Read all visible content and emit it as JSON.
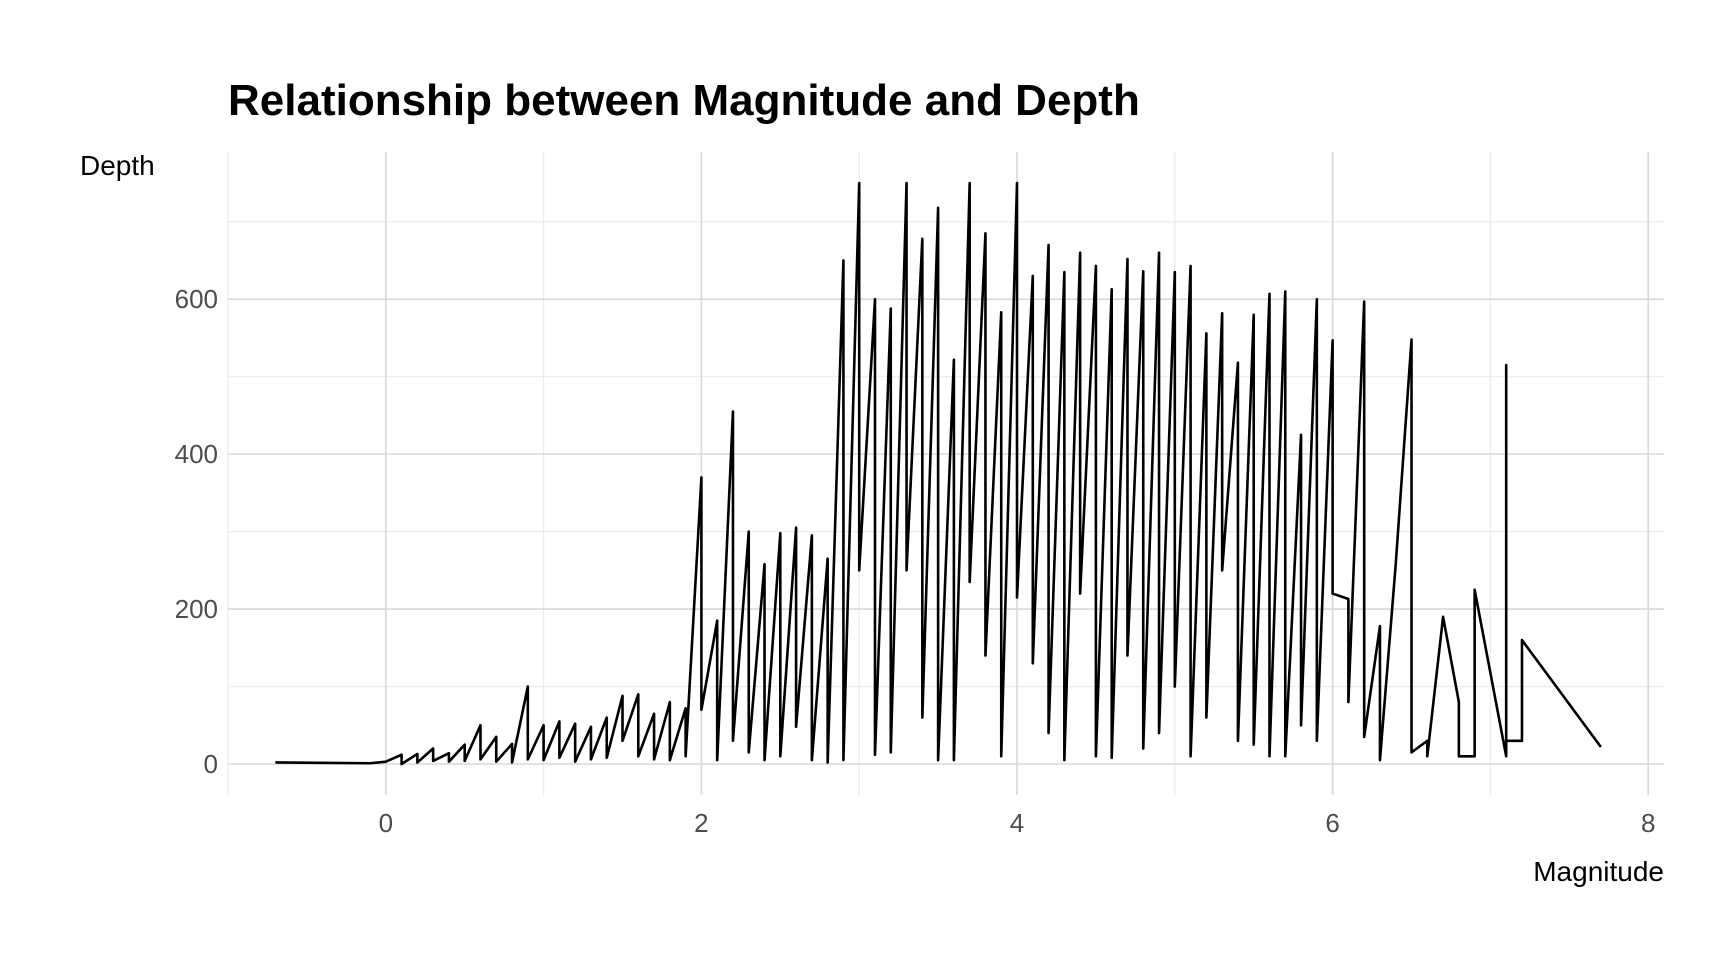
{
  "chart_data": {
    "type": "line",
    "title": "Relationship between Magnitude and Depth",
    "xlabel": "Magnitude",
    "ylabel": "Depth",
    "xlim": [
      -1.0,
      8.1
    ],
    "ylim": [
      -40,
      790
    ],
    "x_ticks": [
      0,
      2,
      4,
      6,
      8
    ],
    "y_ticks": [
      0,
      200,
      400,
      600
    ],
    "grid": true,
    "legend": "none",
    "series": [
      {
        "color": "#000000",
        "points": [
          [
            -0.7,
            2
          ],
          [
            -0.1,
            1
          ],
          [
            0.0,
            3
          ],
          [
            0.1,
            12
          ],
          [
            0.1,
            0
          ],
          [
            0.2,
            13
          ],
          [
            0.2,
            2
          ],
          [
            0.3,
            20
          ],
          [
            0.3,
            4
          ],
          [
            0.4,
            14
          ],
          [
            0.4,
            3
          ],
          [
            0.5,
            25
          ],
          [
            0.5,
            4
          ],
          [
            0.6,
            50
          ],
          [
            0.6,
            6
          ],
          [
            0.7,
            35
          ],
          [
            0.7,
            3
          ],
          [
            0.8,
            26
          ],
          [
            0.8,
            2
          ],
          [
            0.9,
            100
          ],
          [
            0.9,
            6
          ],
          [
            1.0,
            50
          ],
          [
            1.0,
            5
          ],
          [
            1.1,
            55
          ],
          [
            1.1,
            8
          ],
          [
            1.2,
            52
          ],
          [
            1.2,
            3
          ],
          [
            1.3,
            48
          ],
          [
            1.3,
            6
          ],
          [
            1.4,
            60
          ],
          [
            1.4,
            8
          ],
          [
            1.5,
            88
          ],
          [
            1.5,
            30
          ],
          [
            1.6,
            90
          ],
          [
            1.6,
            10
          ],
          [
            1.7,
            65
          ],
          [
            1.7,
            6
          ],
          [
            1.8,
            80
          ],
          [
            1.8,
            5
          ],
          [
            1.9,
            72
          ],
          [
            1.9,
            10
          ],
          [
            2.0,
            370
          ],
          [
            2.0,
            70
          ],
          [
            2.1,
            185
          ],
          [
            2.1,
            5
          ],
          [
            2.2,
            455
          ],
          [
            2.2,
            30
          ],
          [
            2.3,
            300
          ],
          [
            2.3,
            15
          ],
          [
            2.4,
            258
          ],
          [
            2.4,
            5
          ],
          [
            2.5,
            298
          ],
          [
            2.5,
            10
          ],
          [
            2.6,
            305
          ],
          [
            2.6,
            48
          ],
          [
            2.7,
            295
          ],
          [
            2.7,
            5
          ],
          [
            2.8,
            265
          ],
          [
            2.8,
            2
          ],
          [
            2.9,
            650
          ],
          [
            2.9,
            5
          ],
          [
            3.0,
            750
          ],
          [
            3.0,
            250
          ],
          [
            3.1,
            600
          ],
          [
            3.1,
            12
          ],
          [
            3.2,
            588
          ],
          [
            3.2,
            15
          ],
          [
            3.3,
            750
          ],
          [
            3.3,
            250
          ],
          [
            3.4,
            678
          ],
          [
            3.4,
            60
          ],
          [
            3.5,
            718
          ],
          [
            3.5,
            5
          ],
          [
            3.6,
            522
          ],
          [
            3.6,
            5
          ],
          [
            3.7,
            750
          ],
          [
            3.7,
            235
          ],
          [
            3.8,
            685
          ],
          [
            3.8,
            140
          ],
          [
            3.9,
            583
          ],
          [
            3.9,
            10
          ],
          [
            4.0,
            750
          ],
          [
            4.0,
            215
          ],
          [
            4.1,
            630
          ],
          [
            4.1,
            130
          ],
          [
            4.2,
            670
          ],
          [
            4.2,
            40
          ],
          [
            4.3,
            635
          ],
          [
            4.3,
            5
          ],
          [
            4.4,
            660
          ],
          [
            4.4,
            220
          ],
          [
            4.5,
            643
          ],
          [
            4.5,
            10
          ],
          [
            4.6,
            613
          ],
          [
            4.6,
            8
          ],
          [
            4.7,
            652
          ],
          [
            4.7,
            140
          ],
          [
            4.8,
            636
          ],
          [
            4.8,
            20
          ],
          [
            4.9,
            660
          ],
          [
            4.9,
            40
          ],
          [
            5.0,
            635
          ],
          [
            5.0,
            100
          ],
          [
            5.1,
            643
          ],
          [
            5.1,
            10
          ],
          [
            5.2,
            556
          ],
          [
            5.2,
            60
          ],
          [
            5.3,
            582
          ],
          [
            5.3,
            250
          ],
          [
            5.4,
            518
          ],
          [
            5.4,
            30
          ],
          [
            5.5,
            580
          ],
          [
            5.5,
            25
          ],
          [
            5.6,
            607
          ],
          [
            5.6,
            10
          ],
          [
            5.7,
            610
          ],
          [
            5.7,
            10
          ],
          [
            5.8,
            425
          ],
          [
            5.8,
            50
          ],
          [
            5.9,
            600
          ],
          [
            5.9,
            30
          ],
          [
            6.0,
            547
          ],
          [
            6.0,
            220
          ],
          [
            6.1,
            213
          ],
          [
            6.1,
            80
          ],
          [
            6.2,
            597
          ],
          [
            6.2,
            35
          ],
          [
            6.3,
            178
          ],
          [
            6.3,
            5
          ],
          [
            6.4,
            258
          ],
          [
            6.5,
            548
          ],
          [
            6.5,
            15
          ],
          [
            6.6,
            30
          ],
          [
            6.6,
            10
          ],
          [
            6.7,
            190
          ],
          [
            6.8,
            80
          ],
          [
            6.8,
            10
          ],
          [
            6.9,
            10
          ],
          [
            6.9,
            225
          ],
          [
            7.1,
            10
          ],
          [
            7.1,
            515
          ],
          [
            7.1,
            30
          ],
          [
            7.2,
            30
          ],
          [
            7.2,
            160
          ],
          [
            7.7,
            22
          ]
        ]
      }
    ]
  }
}
